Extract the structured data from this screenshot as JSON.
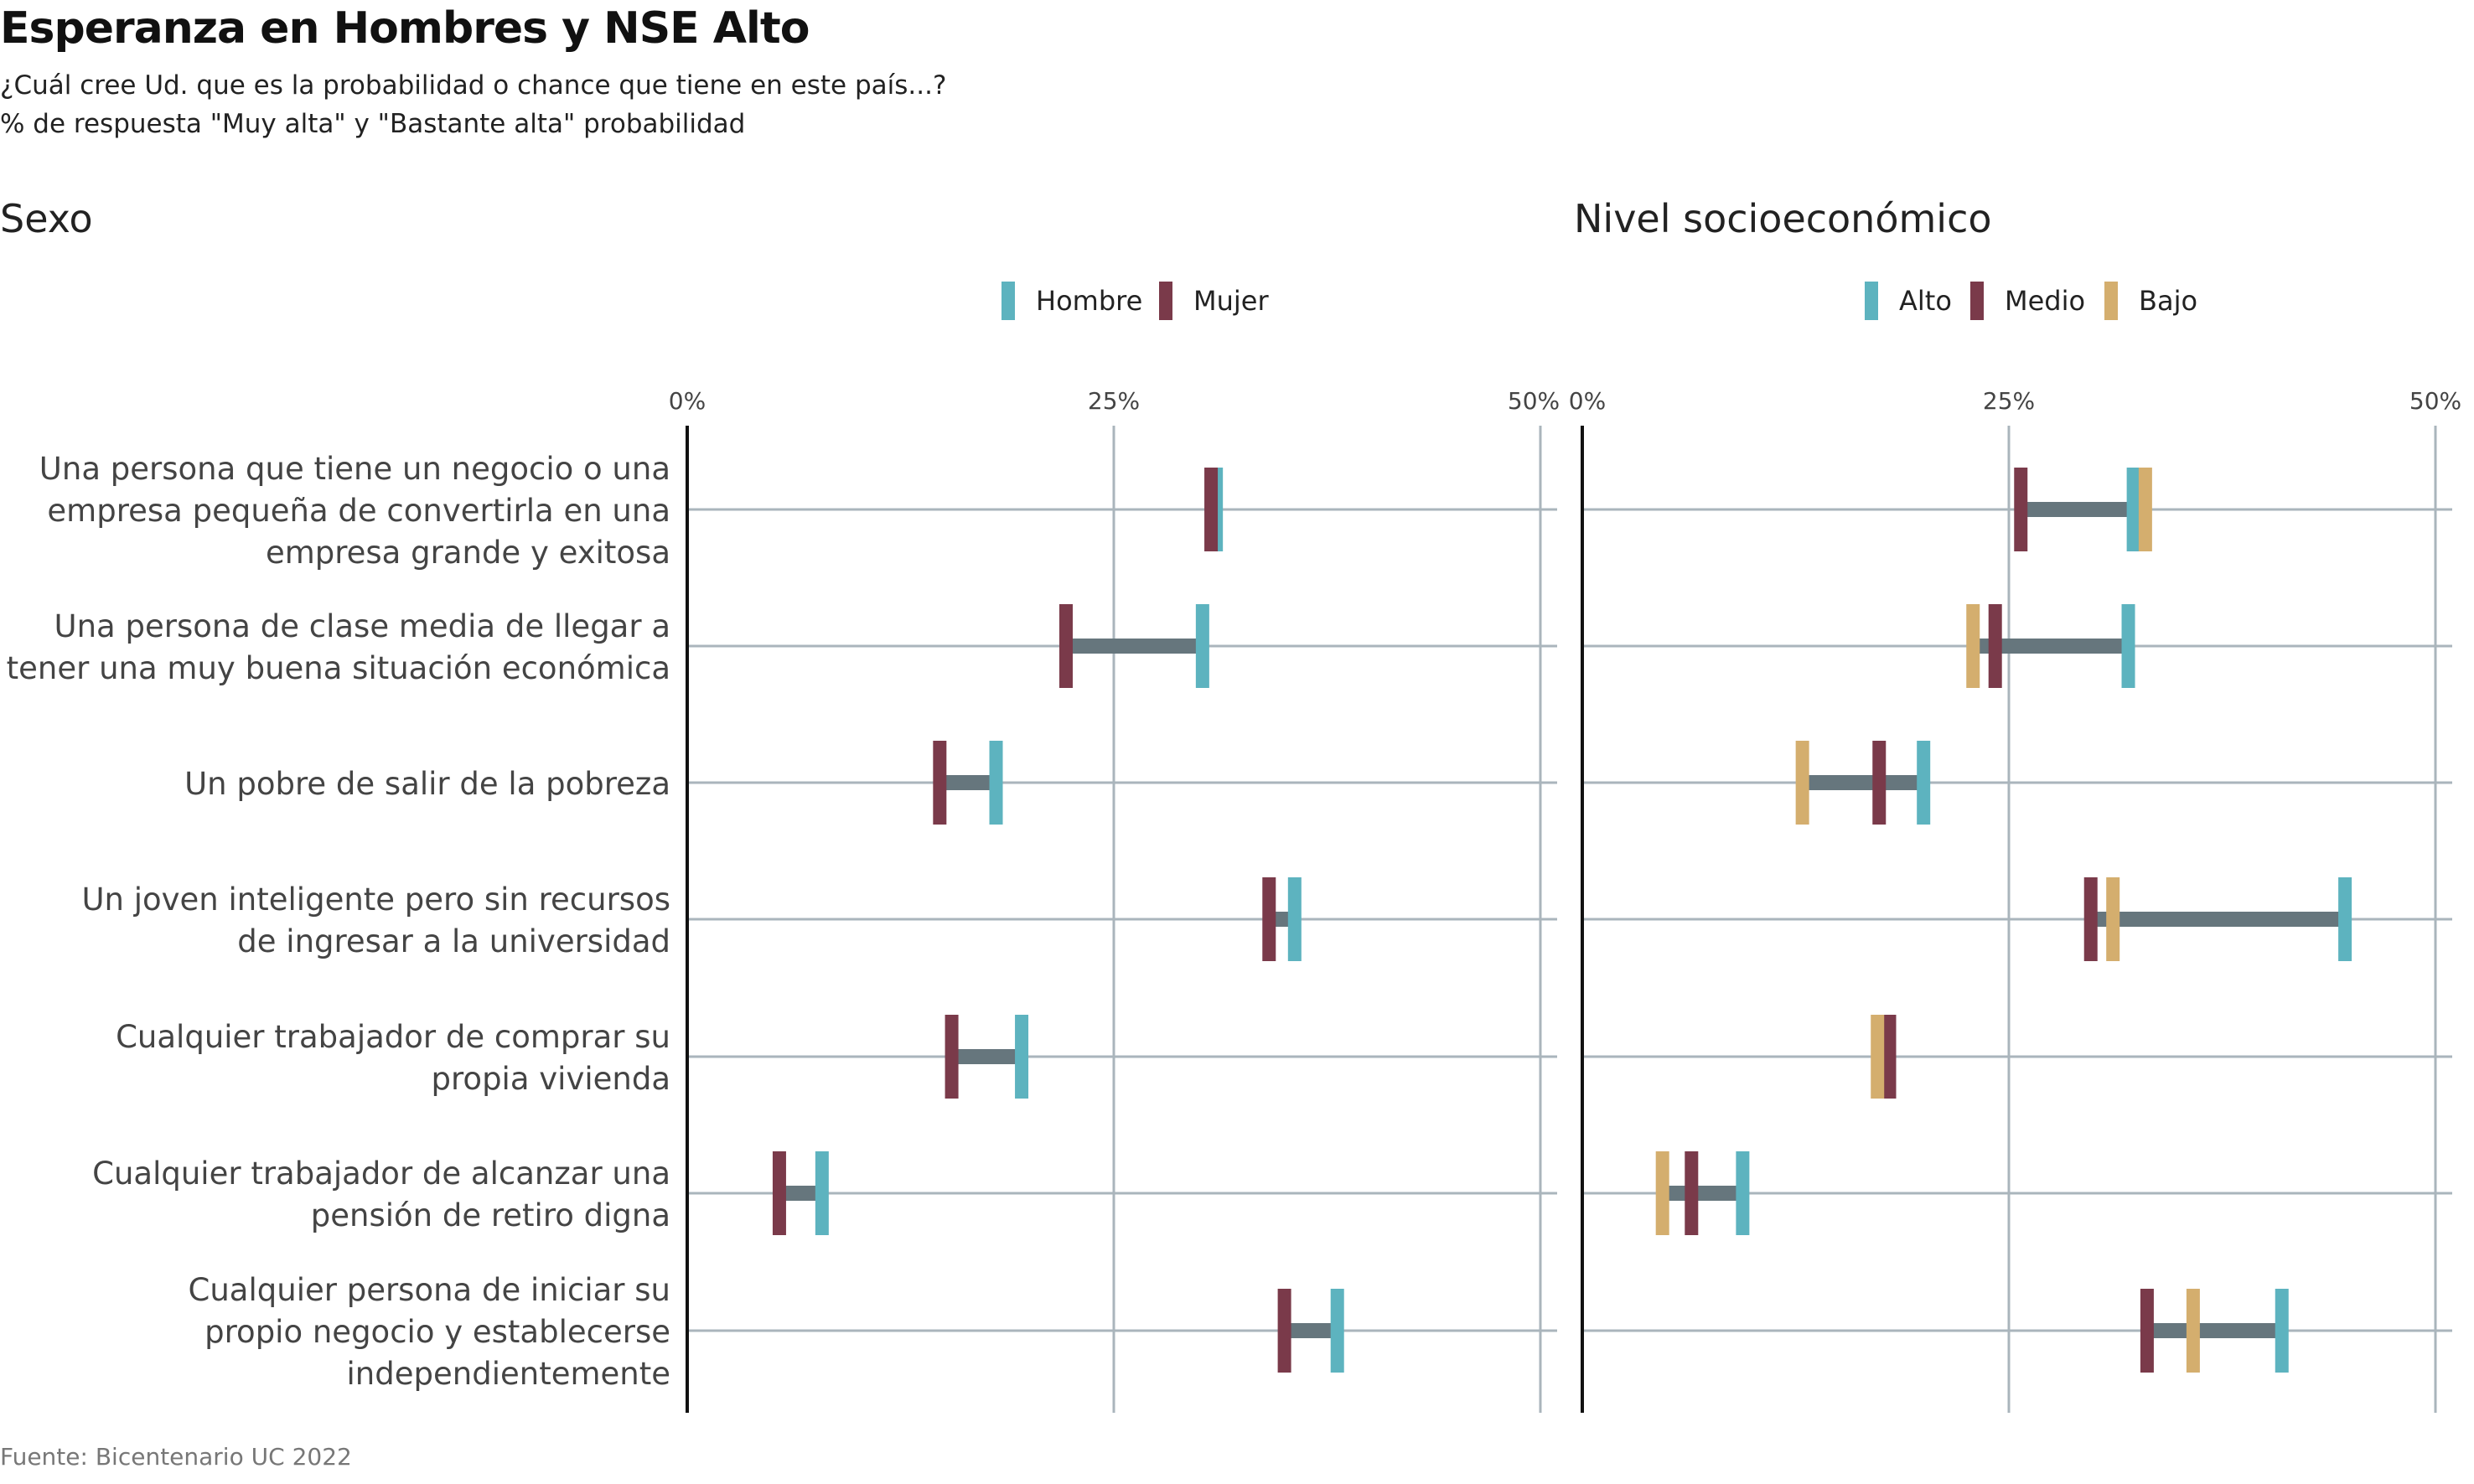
{
  "title": "Esperanza en Hombres y NSE Alto",
  "subtitle_1": "¿Cuál cree Ud. que es la probabilidad o chance que tiene en este país...?",
  "subtitle_2": "% de respuesta \"Muy alta\" y \"Bastante alta\" probabilidad",
  "source": "Fuente: Bicentenario UC 2022",
  "colors": {
    "Hombre": "#5db3bf",
    "Mujer": "#7a3a4a",
    "Alto": "#5db3bf",
    "Medio": "#7a3a4a",
    "Bajo": "#d4ae6e",
    "range": "#66767d",
    "grid": "#aab5bc"
  },
  "chart_data": [
    {
      "type": "dumbbell",
      "panel_title": "Sexo",
      "legend": [
        "Hombre",
        "Mujer"
      ],
      "xlim": [
        0,
        50
      ],
      "ticks": [
        "0%",
        "25%",
        "50%"
      ],
      "grid": true,
      "categories": [
        "Una persona que tiene un negocio o una empresa pequeña de convertirla en una empresa grande y exitosa",
        "Una persona de clase media de llegar a tener una muy buena situación económica",
        "Un pobre de salir de la pobreza",
        "Un joven inteligente pero sin recursos de ingresar a la universidad",
        "Cualquier trabajador de comprar su propia vivienda",
        "Cualquier trabajador de alcanzar una pensión de retiro digna",
        "Cualquier persona de iniciar su propio negocio y establecerse independientemente"
      ],
      "category_lines": [
        [
          "Una persona que tiene un negocio o una",
          "empresa pequeña de convertirla en una",
          "empresa grande y exitosa"
        ],
        [
          "Una persona de clase media de llegar a",
          "tener una muy buena situación económica"
        ],
        [
          "Un pobre de salir de la pobreza"
        ],
        [
          "Un joven inteligente pero sin recursos",
          "de ingresar a la universidad"
        ],
        [
          "Cualquier trabajador de comprar su",
          "propia vivienda"
        ],
        [
          "Cualquier trabajador de alcanzar una",
          "pensión de retiro digna"
        ],
        [
          "Cualquier persona de iniciar su",
          "propio negocio y establecerse",
          "independientemente"
        ]
      ],
      "series": [
        {
          "name": "Hombre",
          "values": [
            31.0,
            30.2,
            18.1,
            35.6,
            19.6,
            7.9,
            38.1
          ]
        },
        {
          "name": "Mujer",
          "values": [
            30.7,
            22.2,
            14.8,
            34.1,
            15.5,
            5.4,
            35.0
          ]
        }
      ]
    },
    {
      "type": "dumbbell",
      "panel_title": "Nivel socioeconómico",
      "legend": [
        "Alto",
        "Medio",
        "Bajo"
      ],
      "xlim": [
        0,
        50
      ],
      "ticks": [
        "0%",
        "25%",
        "50%"
      ],
      "grid": true,
      "categories": [
        "Una persona que tiene un negocio o una empresa pequeña de convertirla en una empresa grande y exitosa",
        "Una persona de clase media de llegar a tener una muy buena situación económica",
        "Un pobre de salir de la pobreza",
        "Un joven inteligente pero sin recursos de ingresar a la universidad",
        "Cualquier trabajador de comprar su propia vivienda",
        "Cualquier trabajador de alcanzar una pensión de retiro digna",
        "Cualquier persona de iniciar su propio negocio y establecerse independientemente"
      ],
      "series": [
        {
          "name": "Alto",
          "values": [
            32.3,
            32.0,
            20.0,
            44.7,
            17.8,
            9.4,
            41.0
          ]
        },
        {
          "name": "Medio",
          "values": [
            25.7,
            24.2,
            17.4,
            29.8,
            18.0,
            6.4,
            33.1
          ]
        },
        {
          "name": "Bajo",
          "values": [
            33.0,
            22.9,
            12.9,
            31.1,
            17.3,
            4.7,
            35.8
          ]
        }
      ]
    }
  ]
}
